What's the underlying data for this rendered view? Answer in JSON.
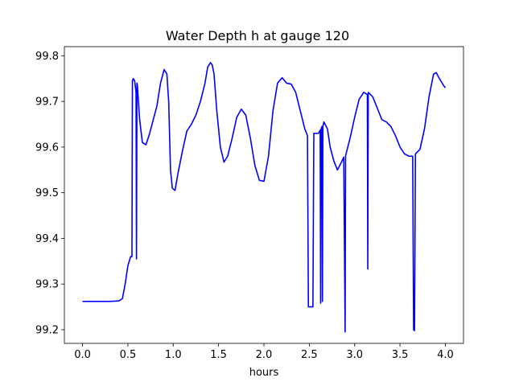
{
  "chart_data": {
    "type": "line",
    "title": "Water Depth h at gauge 120",
    "xlabel": "hours",
    "ylabel": "",
    "xlim": [
      -0.2,
      4.2
    ],
    "ylim": [
      99.17,
      99.82
    ],
    "x_ticks": [
      0.0,
      0.5,
      1.0,
      1.5,
      2.0,
      2.5,
      3.0,
      3.5,
      4.0
    ],
    "x_tick_labels": [
      "0.0",
      "0.5",
      "1.0",
      "1.5",
      "2.0",
      "2.5",
      "3.0",
      "3.5",
      "4.0"
    ],
    "y_ticks": [
      99.2,
      99.3,
      99.4,
      99.5,
      99.6,
      99.7,
      99.8
    ],
    "y_tick_labels": [
      "99.2",
      "99.3",
      "99.4",
      "99.5",
      "99.6",
      "99.7",
      "99.8"
    ],
    "grid": false,
    "line_color": "#0000ff",
    "series": [
      {
        "x": [
          0.0,
          0.1,
          0.2,
          0.3,
          0.4,
          0.44,
          0.47,
          0.5,
          0.53,
          0.545,
          0.55,
          0.56,
          0.575,
          0.59,
          0.595,
          0.6,
          0.605,
          0.61,
          0.63,
          0.66,
          0.7,
          0.74,
          0.78,
          0.82,
          0.86,
          0.9,
          0.93,
          0.95,
          0.97,
          0.99,
          1.02,
          1.05,
          1.1,
          1.15,
          1.2,
          1.25,
          1.3,
          1.35,
          1.38,
          1.41,
          1.43,
          1.45,
          1.48,
          1.52,
          1.56,
          1.6,
          1.65,
          1.7,
          1.75,
          1.8,
          1.85,
          1.9,
          1.95,
          2.0,
          2.05,
          2.1,
          2.15,
          2.2,
          2.25,
          2.3,
          2.35,
          2.4,
          2.45,
          2.48,
          2.49,
          2.51,
          2.54,
          2.55,
          2.6,
          2.62,
          2.625,
          2.63,
          2.64,
          2.645,
          2.65,
          2.66,
          2.7,
          2.73,
          2.77,
          2.81,
          2.85,
          2.88,
          2.895,
          2.9,
          2.905,
          2.95,
          3.0,
          3.05,
          3.1,
          3.14,
          3.145,
          3.15,
          3.2,
          3.25,
          3.3,
          3.35,
          3.4,
          3.45,
          3.5,
          3.55,
          3.6,
          3.64,
          3.65,
          3.66,
          3.67,
          3.72,
          3.77,
          3.82,
          3.87,
          3.9,
          3.92,
          3.95,
          3.98,
          4.0
        ],
        "y": [
          99.262,
          99.262,
          99.262,
          99.262,
          99.263,
          99.268,
          99.3,
          99.34,
          99.36,
          99.36,
          99.745,
          99.75,
          99.745,
          99.72,
          99.355,
          99.74,
          99.735,
          99.72,
          99.66,
          99.61,
          99.605,
          99.63,
          99.66,
          99.69,
          99.74,
          99.77,
          99.76,
          99.7,
          99.55,
          99.51,
          99.505,
          99.54,
          99.59,
          99.635,
          99.65,
          99.67,
          99.7,
          99.74,
          99.775,
          99.785,
          99.78,
          99.76,
          99.68,
          99.6,
          99.567,
          99.58,
          99.62,
          99.665,
          99.683,
          99.67,
          99.62,
          99.56,
          99.527,
          99.525,
          99.58,
          99.68,
          99.74,
          99.752,
          99.74,
          99.738,
          99.72,
          99.68,
          99.64,
          99.625,
          99.25,
          99.25,
          99.25,
          99.63,
          99.63,
          99.637,
          99.258,
          99.64,
          99.645,
          99.262,
          99.645,
          99.655,
          99.64,
          99.6,
          99.57,
          99.55,
          99.565,
          99.578,
          99.195,
          99.58,
          99.585,
          99.62,
          99.665,
          99.705,
          99.72,
          99.715,
          99.333,
          99.72,
          99.71,
          99.685,
          99.66,
          99.655,
          99.645,
          99.625,
          99.6,
          99.585,
          99.58,
          99.58,
          99.2,
          99.198,
          99.585,
          99.595,
          99.64,
          99.71,
          99.76,
          99.763,
          99.755,
          99.745,
          99.735,
          99.73
        ]
      }
    ]
  }
}
